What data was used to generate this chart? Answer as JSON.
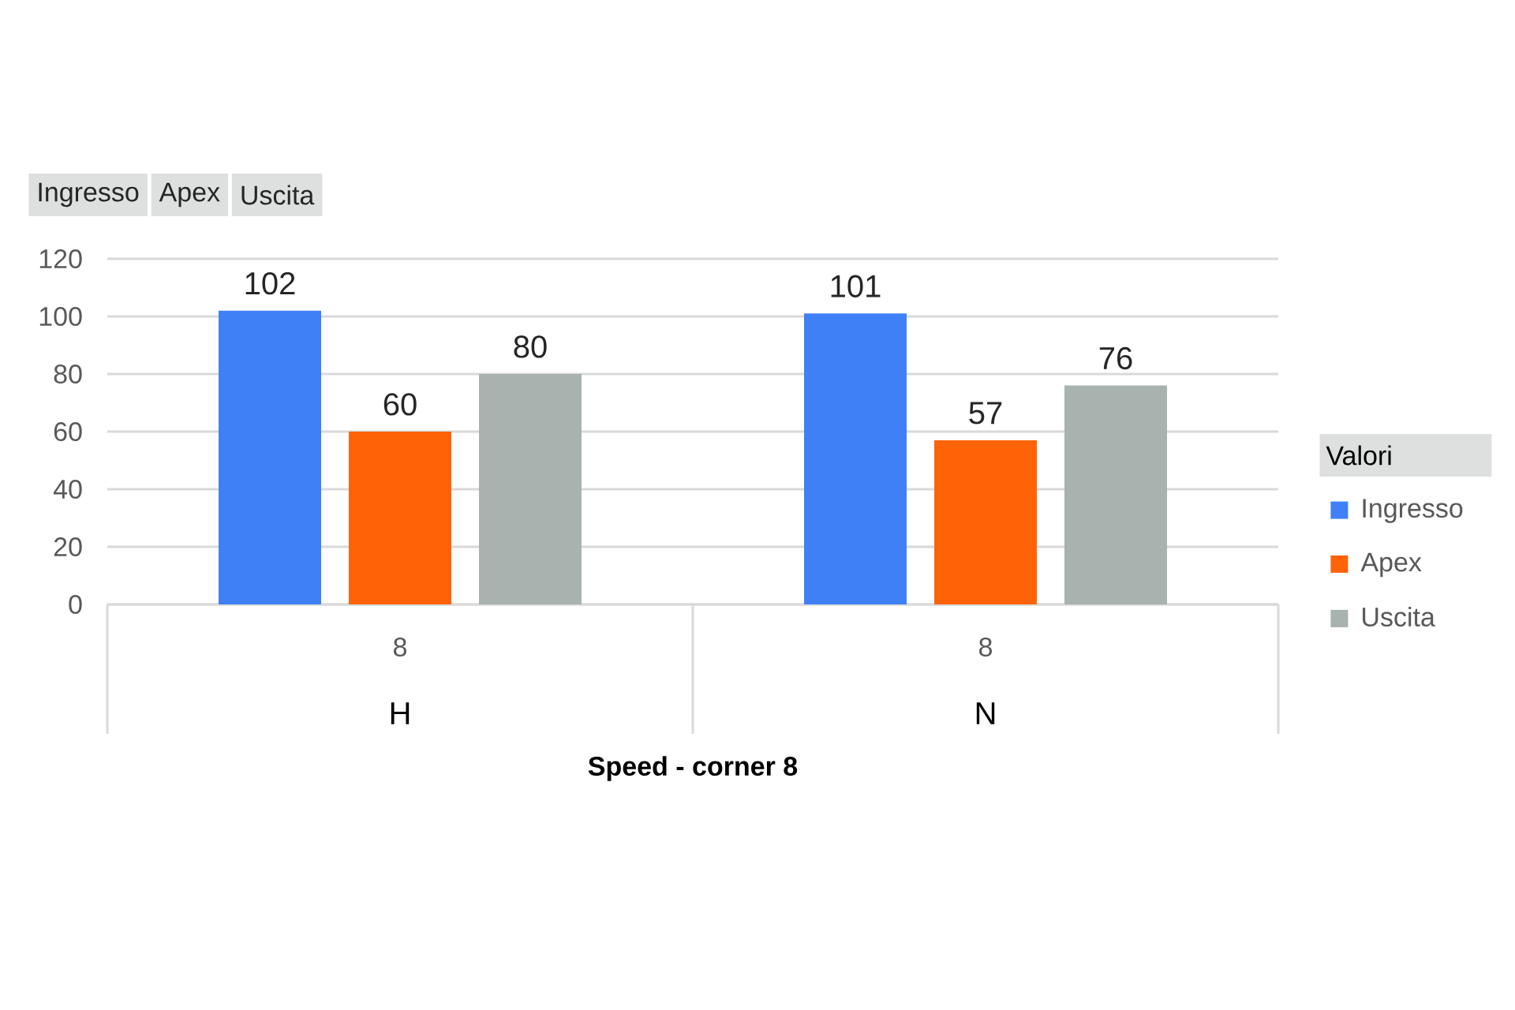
{
  "chart_data": {
    "type": "bar",
    "xlabel": "Speed - corner 8",
    "categories": [
      "8",
      "8"
    ],
    "series": [
      {
        "name": "Ingresso",
        "color": "#3f80f6",
        "values": [
          102,
          101
        ]
      },
      {
        "name": "Apex",
        "color": "#ff6308",
        "values": [
          60,
          57
        ]
      },
      {
        "name": "Uscita",
        "color": "#a8b2af",
        "values": [
          80,
          76
        ]
      }
    ],
    "ylim": [
      0,
      120
    ],
    "yticks": [
      0,
      20,
      40,
      60,
      80,
      100,
      120
    ],
    "grid": "y",
    "legend": "right",
    "legend_title": "Valori",
    "data_labels": true,
    "annotations": [
      "H",
      "N"
    ]
  }
}
